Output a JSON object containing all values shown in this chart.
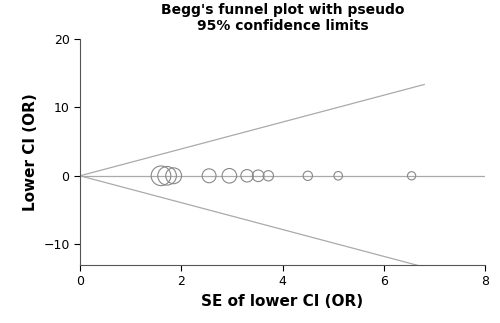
{
  "title": "Begg's funnel plot with pseudo\n95% confidence limits",
  "xlabel": "SE of lower CI (OR)",
  "ylabel": "Lower CI (OR)",
  "xlim": [
    0,
    8
  ],
  "ylim": [
    -13,
    20
  ],
  "xticks": [
    0,
    2,
    4,
    6,
    8
  ],
  "yticks": [
    -10,
    0,
    10,
    20
  ],
  "background_color": "#ffffff",
  "line_color": "#aaaaaa",
  "circle_color": "#888888",
  "funnel_origin_x": 0,
  "funnel_origin_y": 0,
  "funnel_slope_upper": 1.96,
  "funnel_slope_lower": -1.96,
  "funnel_x_end": 6.8,
  "hline_y": 0,
  "hline_x_end": 8,
  "studies": [
    {
      "se": 1.6,
      "y": 0.0,
      "size": 200
    },
    {
      "se": 1.72,
      "y": 0.0,
      "size": 180
    },
    {
      "se": 1.85,
      "y": 0.0,
      "size": 130
    },
    {
      "se": 2.55,
      "y": 0.0,
      "size": 100
    },
    {
      "se": 2.95,
      "y": 0.0,
      "size": 110
    },
    {
      "se": 3.3,
      "y": 0.0,
      "size": 80
    },
    {
      "se": 3.52,
      "y": 0.0,
      "size": 70
    },
    {
      "se": 3.72,
      "y": 0.0,
      "size": 55
    },
    {
      "se": 4.5,
      "y": 0.0,
      "size": 45
    },
    {
      "se": 5.1,
      "y": 0.0,
      "size": 38
    },
    {
      "se": 6.55,
      "y": 0.0,
      "size": 35
    }
  ],
  "title_fontsize": 10,
  "axis_label_fontsize": 11,
  "tick_fontsize": 9,
  "fig_width": 5.0,
  "fig_height": 3.23,
  "fig_dpi": 100
}
